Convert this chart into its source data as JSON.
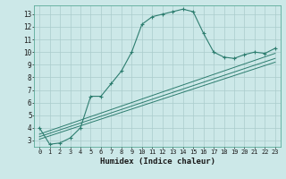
{
  "title": "",
  "xlabel": "Humidex (Indice chaleur)",
  "ylabel": "",
  "bg_color": "#cce8e8",
  "line_color": "#2d7d6f",
  "grid_color": "#aacccc",
  "xlim": [
    -0.5,
    23.5
  ],
  "ylim": [
    2.5,
    13.7
  ],
  "xticks": [
    0,
    1,
    2,
    3,
    4,
    5,
    6,
    7,
    8,
    9,
    10,
    11,
    12,
    13,
    14,
    15,
    16,
    17,
    18,
    19,
    20,
    21,
    22,
    23
  ],
  "yticks": [
    3,
    4,
    5,
    6,
    7,
    8,
    9,
    10,
    11,
    12,
    13
  ],
  "curve1_x": [
    0,
    1,
    2,
    3,
    4,
    5,
    6,
    7,
    8,
    9,
    10,
    11,
    12,
    13,
    14,
    15,
    16,
    17,
    18,
    19,
    20,
    21,
    22,
    23
  ],
  "curve1_y": [
    4.0,
    2.7,
    2.8,
    3.2,
    4.0,
    6.5,
    6.5,
    7.5,
    8.5,
    10.0,
    12.2,
    12.8,
    13.0,
    13.2,
    13.4,
    13.2,
    11.5,
    10.0,
    9.6,
    9.5,
    9.8,
    10.0,
    9.9,
    10.3
  ],
  "line2_x": [
    0,
    23
  ],
  "line2_y": [
    3.1,
    9.2
  ],
  "line3_x": [
    0,
    23
  ],
  "line3_y": [
    3.3,
    9.5
  ],
  "line4_x": [
    0,
    23
  ],
  "line4_y": [
    3.5,
    9.9
  ]
}
